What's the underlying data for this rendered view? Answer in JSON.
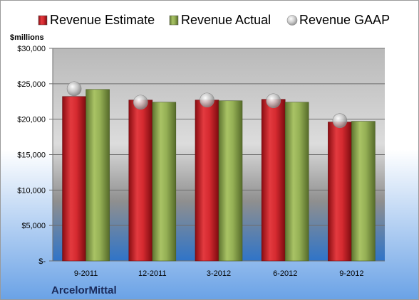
{
  "chart_data": {
    "type": "bar",
    "categories": [
      "9-2011",
      "12-2011",
      "3-2012",
      "6-2012",
      "9-2012"
    ],
    "series": [
      {
        "name": "Revenue Estimate",
        "type": "bar",
        "color": "#cc1f28",
        "values": [
          23200,
          22700,
          22700,
          22800,
          19600
        ]
      },
      {
        "name": "Revenue Actual",
        "type": "bar",
        "color": "#8fa94e",
        "values": [
          24200,
          22400,
          22600,
          22400,
          19700
        ]
      },
      {
        "name": "Revenue GAAP",
        "type": "scatter",
        "color": "#b8b8b8",
        "values": [
          24300,
          22400,
          22700,
          22600,
          19800
        ]
      }
    ],
    "ylabel": "$millions",
    "ylim": [
      0,
      30000
    ],
    "yticks": [
      0,
      5000,
      10000,
      15000,
      20000,
      25000,
      30000
    ],
    "ytick_labels": [
      "$-",
      "$5,000",
      "$10,000",
      "$15,000",
      "$20,000",
      "$25,000",
      "$30,000"
    ],
    "grid": true,
    "legend": "top",
    "company": "ArcelorMittal"
  }
}
